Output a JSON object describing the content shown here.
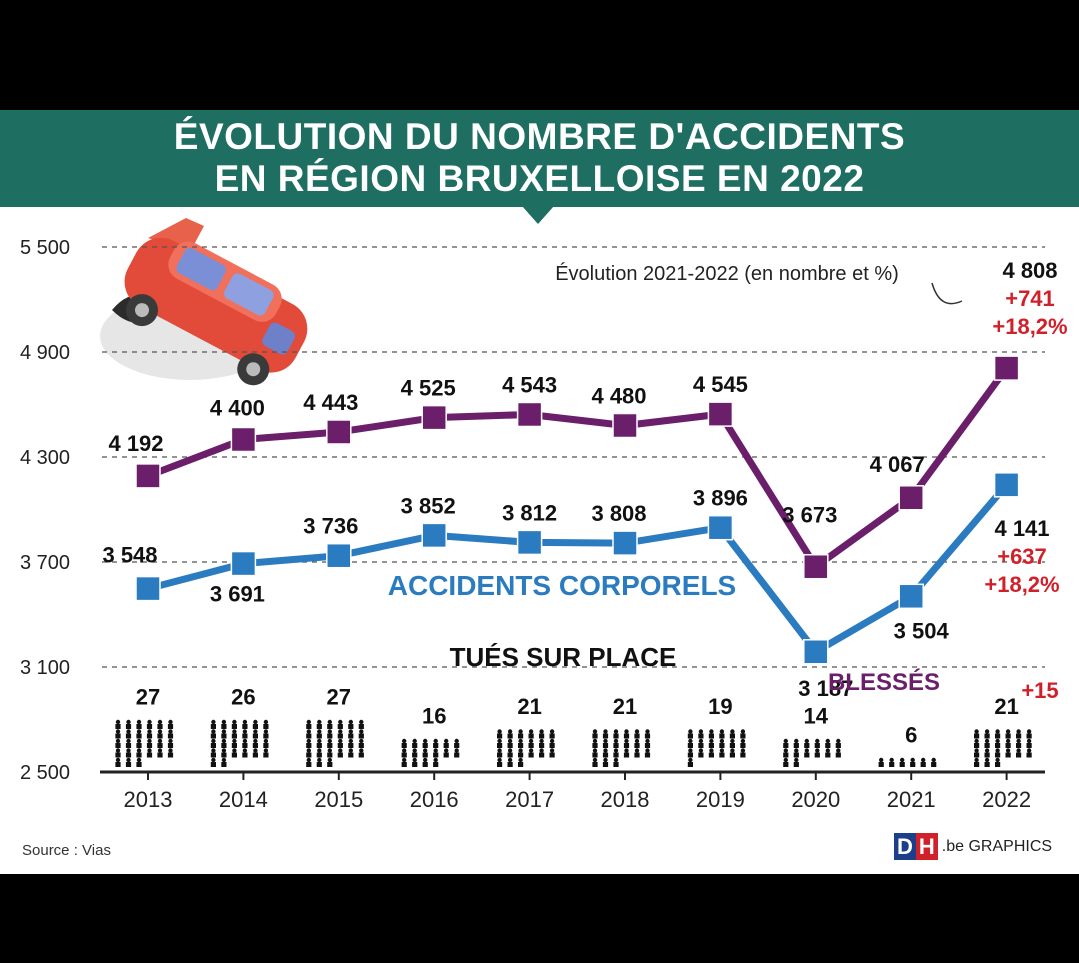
{
  "chart_data": {
    "type": "line",
    "title": "ÉVOLUTION DU NOMBRE D'ACCIDENTS EN RÉGION BRUXELLOISE EN 2022",
    "title_lines": [
      "ÉVOLUTION DU NOMBRE D'ACCIDENTS",
      "EN RÉGION BRUXELLOISE EN 2022"
    ],
    "categories": [
      "2013",
      "2014",
      "2015",
      "2016",
      "2017",
      "2018",
      "2019",
      "2020",
      "2021",
      "2022"
    ],
    "yticks": [
      2500,
      3100,
      3700,
      4300,
      4900,
      5500
    ],
    "ytick_labels": [
      "2 500",
      "3 100",
      "3 700",
      "4 300",
      "4 900",
      "5 500"
    ],
    "ylim": [
      2500,
      5500
    ],
    "grid": "dashed horizontal",
    "series": [
      {
        "name": "BLESSÉS",
        "color": "#6b1f6a",
        "values": [
          4192,
          4400,
          4443,
          4525,
          4543,
          4480,
          4545,
          3673,
          4067,
          4808
        ],
        "labels": [
          "4 192",
          "4 400",
          "4 443",
          "4 525",
          "4 543",
          "4 480",
          "4 545",
          "3 673",
          "4 067",
          "4 808"
        ]
      },
      {
        "name": "ACCIDENTS CORPORELS",
        "color": "#2a7bbf",
        "values": [
          3548,
          3691,
          3736,
          3852,
          3812,
          3808,
          3896,
          3187,
          3504,
          4141
        ],
        "labels": [
          "3 548",
          "3 691",
          "3 736",
          "3 852",
          "3 812",
          "3 808",
          "3 896",
          "3 187",
          "3 504",
          "4 141"
        ]
      }
    ],
    "deaths": {
      "title": "TUÉS SUR PLACE",
      "values": [
        27,
        26,
        27,
        16,
        21,
        21,
        19,
        14,
        6,
        21
      ],
      "change_2022": "+15"
    },
    "annotation": {
      "text": "Évolution 2021-2022 (en nombre et %)",
      "blesses_change": "+741",
      "blesses_pct": "+18,2%",
      "accidents_change": "+637",
      "accidents_pct": "+18,2%"
    },
    "colors": {
      "accent_red": "#d0202a",
      "header": "#1e6e62",
      "blesses": "#6b1f6a",
      "accidents": "#2a7bbf"
    }
  },
  "footer": {
    "source": "Source : Vias",
    "brand_d": "D",
    "brand_h": "H",
    "brand_text": ".be GRAPHICS"
  }
}
